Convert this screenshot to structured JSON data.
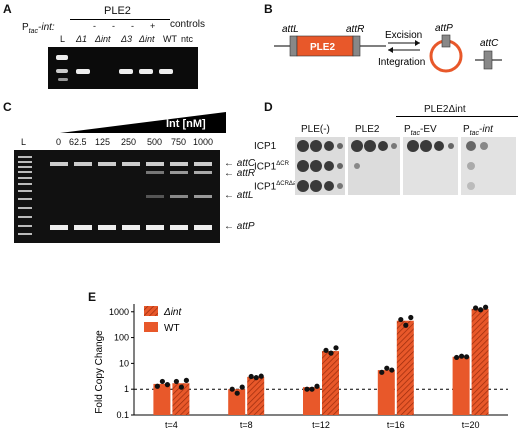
{
  "panelA": {
    "letter": "A",
    "header_ple2": "PLE2",
    "header_controls": "controls",
    "row_label": "P",
    "row_label_sub": "tac",
    "row_label_suffix": "-int:",
    "lane_ladder": "L",
    "lanes": [
      "Δ1",
      "Δint",
      "Δ3",
      "Δint",
      "WT",
      "ntc"
    ],
    "signs": [
      "-",
      "-",
      "-",
      "+"
    ]
  },
  "panelB": {
    "letter": "B",
    "attL": "attL",
    "attR": "attR",
    "ple_label": "PLE2",
    "excision": "Excision",
    "integration": "Integration",
    "attP": "attP",
    "attC": "attC"
  },
  "panelC": {
    "letter": "C",
    "ladder": "L",
    "int_label": "Int [nM]",
    "concentrations": [
      "0",
      "62.5",
      "125",
      "250",
      "500",
      "750",
      "1000"
    ],
    "band_labels": [
      "attC",
      "attR",
      "attL",
      "attP"
    ]
  },
  "panelD": {
    "letter": "D",
    "header_top": "PLE2Δint",
    "cols": [
      "PLE(-)",
      "PLE2",
      "P",
      "P"
    ],
    "col_sub": [
      "",
      "",
      "tac",
      "tac"
    ],
    "col_suffix": [
      "",
      "",
      "-EV",
      "-int"
    ],
    "rows": [
      "ICP1",
      "ICP1",
      "ICP1"
    ],
    "row_sup": [
      "",
      "ΔCR",
      "ΔCRΔadi"
    ]
  },
  "panelE": {
    "letter": "E",
    "chart_data": {
      "type": "bar",
      "categories": [
        "t=4",
        "t=8",
        "t=12",
        "t=16",
        "t=20"
      ],
      "ylabel": "Fold Copy Change",
      "yscale": "log",
      "ylim": [
        0.1,
        2000
      ],
      "yticks": [
        "0.1",
        "1",
        "10",
        "100",
        "1000"
      ],
      "reference_line": 1,
      "series": [
        {
          "name": "WT",
          "color": "#e8582a",
          "values": [
            1.6,
            1.0,
            1.2,
            5.5,
            18
          ],
          "points": [
            [
              1.3,
              2.0,
              1.5
            ],
            [
              1.0,
              0.7,
              1.2
            ],
            [
              1.0,
              1.0,
              1.3
            ],
            [
              4.5,
              6.5,
              5.5
            ],
            [
              17,
              19,
              18
            ]
          ]
        },
        {
          "name": "Δint",
          "color": "#e8582a",
          "hatched": true,
          "values": [
            1.7,
            3.0,
            30,
            450,
            1300
          ],
          "points": [
            [
              2.0,
              1.2,
              2.2
            ],
            [
              3.1,
              2.8,
              3.2
            ],
            [
              32,
              25,
              40
            ],
            [
              500,
              300,
              600
            ],
            [
              1400,
              1200,
              1500
            ]
          ]
        }
      ],
      "legend": [
        "Δint",
        "WT"
      ]
    }
  }
}
